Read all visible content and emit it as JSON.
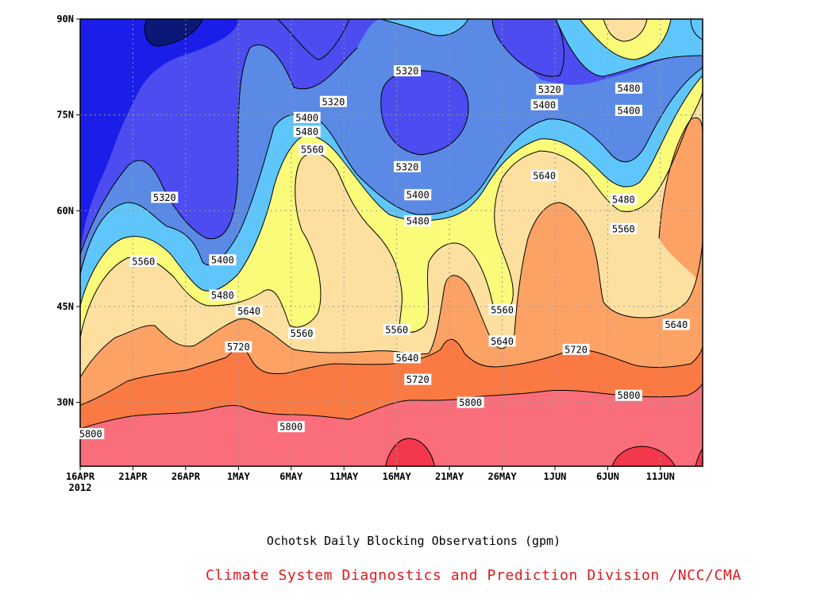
{
  "chart_data": {
    "type": "heatmap",
    "title": "Ochotsk Daily Blocking Observations (gpm)",
    "credit": "Climate System Diagnostics and Prediction Division /NCC/CMA",
    "x_ticks": [
      "16APR",
      "21APR",
      "26APR",
      "1MAY",
      "6MAY",
      "11MAY",
      "16MAY",
      "21MAY",
      "26MAY",
      "1JUN",
      "6JUN",
      "11JUN"
    ],
    "x_year": "2012",
    "x_range": [
      "2012-04-16",
      "2012-06-14"
    ],
    "y_ticks": [
      "30N",
      "45N",
      "60N",
      "75N",
      "90N"
    ],
    "y_range": [
      20,
      90
    ],
    "grid": true,
    "contour_levels": [
      5320,
      5400,
      5480,
      5560,
      5640,
      5720,
      5800
    ],
    "band_colors": [
      "#0b1878",
      "#1a1ee8",
      "#4c4cf0",
      "#5a8ae6",
      "#5fc6fb",
      "#fbfb7a",
      "#fde0a0",
      "#fca265",
      "#fb7a44",
      "#f96e7a",
      "#f2384a"
    ],
    "contour_labels": [
      {
        "text": "5800",
        "day": 1.0,
        "lat": 25.1
      },
      {
        "text": "5800",
        "day": 20.0,
        "lat": 26.2
      },
      {
        "text": "5800",
        "day": 37.0,
        "lat": 30.0
      },
      {
        "text": "5800",
        "day": 52.0,
        "lat": 31.1
      },
      {
        "text": "5720",
        "day": 15.0,
        "lat": 38.7
      },
      {
        "text": "5720",
        "day": 32.0,
        "lat": 33.6
      },
      {
        "text": "5720",
        "day": 47.0,
        "lat": 38.3
      },
      {
        "text": "5640",
        "day": 16.0,
        "lat": 44.3
      },
      {
        "text": "5640",
        "day": 31.0,
        "lat": 37.0
      },
      {
        "text": "5640",
        "day": 40.0,
        "lat": 39.6
      },
      {
        "text": "5640",
        "day": 56.5,
        "lat": 42.2
      },
      {
        "text": "5640",
        "day": 44.0,
        "lat": 65.5
      },
      {
        "text": "5560",
        "day": 6.0,
        "lat": 52.1
      },
      {
        "text": "5560",
        "day": 21.0,
        "lat": 40.8
      },
      {
        "text": "5560",
        "day": 30.0,
        "lat": 41.4
      },
      {
        "text": "5560",
        "day": 40.0,
        "lat": 44.5
      },
      {
        "text": "5560",
        "day": 22.0,
        "lat": 69.6
      },
      {
        "text": "5560",
        "day": 51.5,
        "lat": 57.2
      },
      {
        "text": "5480",
        "day": 13.5,
        "lat": 46.8
      },
      {
        "text": "5480",
        "day": 21.5,
        "lat": 72.4
      },
      {
        "text": "5480",
        "day": 32.0,
        "lat": 58.4
      },
      {
        "text": "5480",
        "day": 51.5,
        "lat": 61.8
      },
      {
        "text": "5480",
        "day": 52.0,
        "lat": 79.2
      },
      {
        "text": "5400",
        "day": 13.5,
        "lat": 52.3
      },
      {
        "text": "5400",
        "day": 21.5,
        "lat": 74.6
      },
      {
        "text": "5400",
        "day": 32.0,
        "lat": 62.5
      },
      {
        "text": "5400",
        "day": 44.0,
        "lat": 76.6
      },
      {
        "text": "5400",
        "day": 52.0,
        "lat": 75.7
      },
      {
        "text": "5320",
        "day": 8.0,
        "lat": 62.1
      },
      {
        "text": "5320",
        "day": 24.0,
        "lat": 77.1
      },
      {
        "text": "5320",
        "day": 31.0,
        "lat": 66.9
      },
      {
        "text": "5320",
        "day": 31.0,
        "lat": 81.9
      },
      {
        "text": "5320",
        "day": 44.5,
        "lat": 79.0
      }
    ]
  }
}
